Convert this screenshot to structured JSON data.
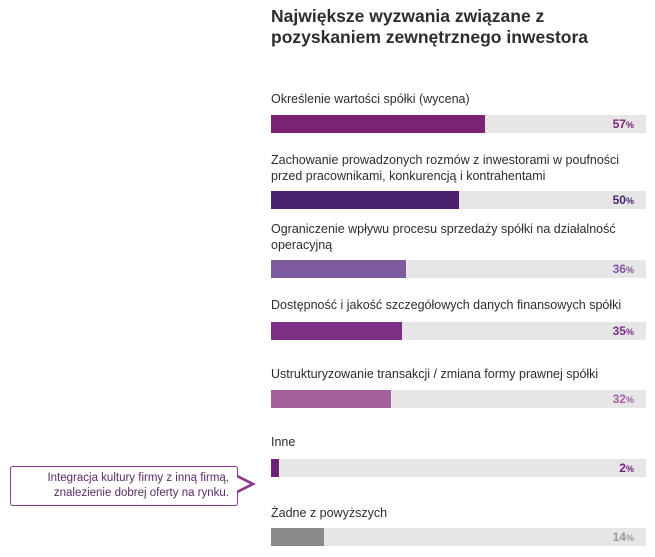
{
  "chart_data": {
    "type": "bar",
    "title": "Największe wyzwania związane z pozyskaniem zewnętrznego inwestora",
    "orientation": "horizontal",
    "xlim": [
      0,
      100
    ],
    "unit": "%",
    "categories": [
      "Określenie wartości spółki (wycena)",
      "Zachowanie prowadzonych rozmów z inwestorami w poufności przed pracownikami, konkurencją i kontrahentami",
      "Ograniczenie wpływu procesu sprzedaży spółki na działalność operacyjną",
      "Dostępność i jakość szczegółowych danych finansowych spółki",
      "Ustrukturyzowanie transakcji / zmiana formy prawnej spółki",
      "Inne",
      "Żadne z powyższych"
    ],
    "values": [
      57,
      50,
      36,
      35,
      32,
      2,
      14
    ],
    "value_labels": [
      "57",
      "50",
      "36",
      "35",
      "32",
      "2",
      "14"
    ],
    "colors": [
      "#7b2277",
      "#4b2270",
      "#7d5a9e",
      "#7d2e85",
      "#a3619e",
      "#6f2279",
      "#8a8a8a"
    ],
    "label_colors": [
      "#7b2277",
      "#4b2270",
      "#7d5a9e",
      "#7d2e85",
      "#a3619e",
      "#6f2279",
      "#9a9a9a"
    ],
    "annotation": {
      "target_category": "Inne",
      "text": "Integracja kultury firmy z inną firmą, znalezienie dobrej oferty na rynku."
    }
  }
}
